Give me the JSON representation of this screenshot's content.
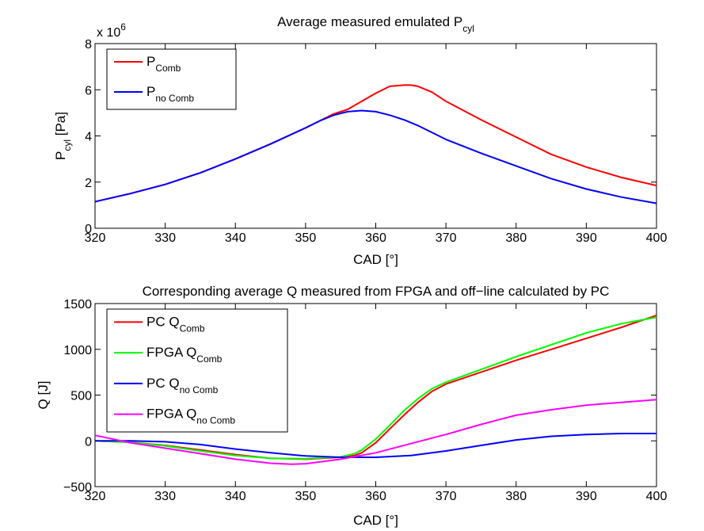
{
  "chart_data": [
    {
      "type": "line",
      "title": "Average measured emulated P",
      "title_sub": "cyl",
      "xlabel": "CAD [°]",
      "ylabel": "P",
      "ylabel_sub": "cyl",
      "ylabel_unit": " [Pa]",
      "y_multiplier": "x 10",
      "y_multiplier_exp": "6",
      "xlim": [
        320,
        400
      ],
      "ylim": [
        0,
        8000000
      ],
      "xticks": [
        320,
        330,
        340,
        350,
        360,
        370,
        380,
        390,
        400
      ],
      "yticks": [
        0,
        2000000,
        4000000,
        6000000,
        8000000
      ],
      "ytick_labels": [
        "0",
        "2",
        "4",
        "6",
        "8"
      ],
      "grid": false,
      "legend_position": "top-left",
      "series": [
        {
          "name": "P",
          "name_sub": "Comb",
          "color": "#ff0000",
          "x": [
            320,
            325,
            330,
            335,
            340,
            345,
            350,
            352,
            354,
            356,
            358,
            360,
            362,
            364,
            365,
            366,
            368,
            370,
            375,
            380,
            385,
            390,
            395,
            400
          ],
          "y": [
            1150000,
            1500000,
            1900000,
            2400000,
            3000000,
            3650000,
            4350000,
            4650000,
            4950000,
            5150000,
            5500000,
            5850000,
            6150000,
            6200000,
            6200000,
            6150000,
            5900000,
            5500000,
            4700000,
            3950000,
            3200000,
            2650000,
            2200000,
            1850000
          ]
        },
        {
          "name": "P",
          "name_sub": "no Comb",
          "color": "#0000ff",
          "x": [
            320,
            325,
            330,
            335,
            340,
            345,
            350,
            352,
            354,
            356,
            358,
            360,
            362,
            364,
            366,
            368,
            370,
            375,
            380,
            385,
            390,
            395,
            400
          ],
          "y": [
            1150000,
            1500000,
            1900000,
            2400000,
            3000000,
            3650000,
            4350000,
            4650000,
            4900000,
            5050000,
            5100000,
            5050000,
            4900000,
            4700000,
            4450000,
            4150000,
            3850000,
            3250000,
            2700000,
            2150000,
            1700000,
            1350000,
            1080000
          ]
        }
      ]
    },
    {
      "type": "line",
      "title": "Corresponding average Q measured from FPGA and off−line calculated by PC",
      "xlabel": "CAD [°]",
      "ylabel": "Q [J]",
      "xlim": [
        320,
        400
      ],
      "ylim": [
        -500,
        1500
      ],
      "xticks": [
        320,
        330,
        340,
        350,
        360,
        370,
        380,
        390,
        400
      ],
      "yticks": [
        -500,
        0,
        500,
        1000,
        1500
      ],
      "ytick_labels": [
        "−500",
        "0",
        "500",
        "1000",
        "1500"
      ],
      "grid": false,
      "legend_position": "top-left",
      "series": [
        {
          "name": "PC Q",
          "name_sub": "Comb",
          "color": "#ff0000",
          "x": [
            320,
            325,
            330,
            335,
            340,
            345,
            350,
            355,
            357,
            358,
            360,
            362,
            364,
            366,
            368,
            370,
            375,
            380,
            385,
            390,
            395,
            400
          ],
          "y": [
            0,
            -15,
            -50,
            -100,
            -150,
            -190,
            -200,
            -180,
            -160,
            -130,
            -20,
            130,
            280,
            420,
            540,
            620,
            750,
            880,
            1000,
            1120,
            1240,
            1370
          ]
        },
        {
          "name": "FPGA Q",
          "name_sub": "Comb",
          "color": "#00ff00",
          "x": [
            320,
            325,
            330,
            335,
            340,
            345,
            350,
            355,
            357,
            358,
            360,
            362,
            364,
            366,
            368,
            370,
            375,
            380,
            385,
            390,
            395,
            400
          ],
          "y": [
            0,
            -15,
            -55,
            -110,
            -160,
            -190,
            -195,
            -175,
            -140,
            -100,
            20,
            170,
            330,
            460,
            570,
            640,
            780,
            920,
            1050,
            1180,
            1280,
            1350
          ]
        },
        {
          "name": "PC Q",
          "name_sub": "no Comb",
          "color": "#0000ff",
          "x": [
            320,
            325,
            330,
            335,
            340,
            345,
            350,
            355,
            360,
            365,
            370,
            375,
            380,
            385,
            390,
            395,
            400
          ],
          "y": [
            0,
            0,
            -10,
            -40,
            -90,
            -130,
            -165,
            -180,
            -180,
            -160,
            -110,
            -50,
            10,
            50,
            70,
            80,
            80
          ]
        },
        {
          "name": "FPGA Q",
          "name_sub": "no Comb",
          "color": "#ff00ff",
          "x": [
            320,
            325,
            330,
            335,
            340,
            345,
            348,
            350,
            355,
            360,
            365,
            370,
            375,
            380,
            385,
            390,
            395,
            400
          ],
          "y": [
            60,
            -20,
            -80,
            -140,
            -200,
            -245,
            -255,
            -250,
            -200,
            -130,
            -30,
            70,
            180,
            280,
            340,
            390,
            420,
            450
          ]
        }
      ]
    }
  ]
}
